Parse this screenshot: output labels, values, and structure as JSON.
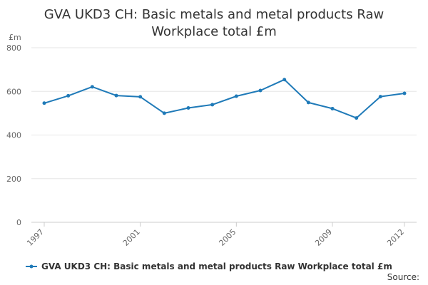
{
  "chart_data": {
    "type": "line",
    "title_lines": [
      "GVA UKD3 CH: Basic metals and metal products Raw",
      "Workplace total £m"
    ],
    "title": "GVA UKD3 CH: Basic metals and metal products Raw Workplace total £m",
    "ylabel": "£m",
    "xlabel": "",
    "ylim": [
      0,
      800
    ],
    "yticks": [
      0,
      200,
      400,
      600,
      800
    ],
    "xlim": [
      1997,
      2012
    ],
    "xticks": [
      1997,
      2001,
      2005,
      2009,
      2012
    ],
    "grid": true,
    "legend_position": "bottom",
    "series": [
      {
        "name": "GVA UKD3 CH: Basic metals and metal products Raw Workplace total £m",
        "color": "#1f7ab8",
        "x": [
          1997,
          1998,
          1999,
          2000,
          2001,
          2002,
          2003,
          2004,
          2005,
          2006,
          2007,
          2008,
          2009,
          2010,
          2011,
          2012
        ],
        "y": [
          546,
          580,
          621,
          581,
          575,
          500,
          524,
          539,
          578,
          604,
          654,
          549,
          521,
          478,
          576,
          591
        ]
      }
    ],
    "source_label": "Source:"
  }
}
